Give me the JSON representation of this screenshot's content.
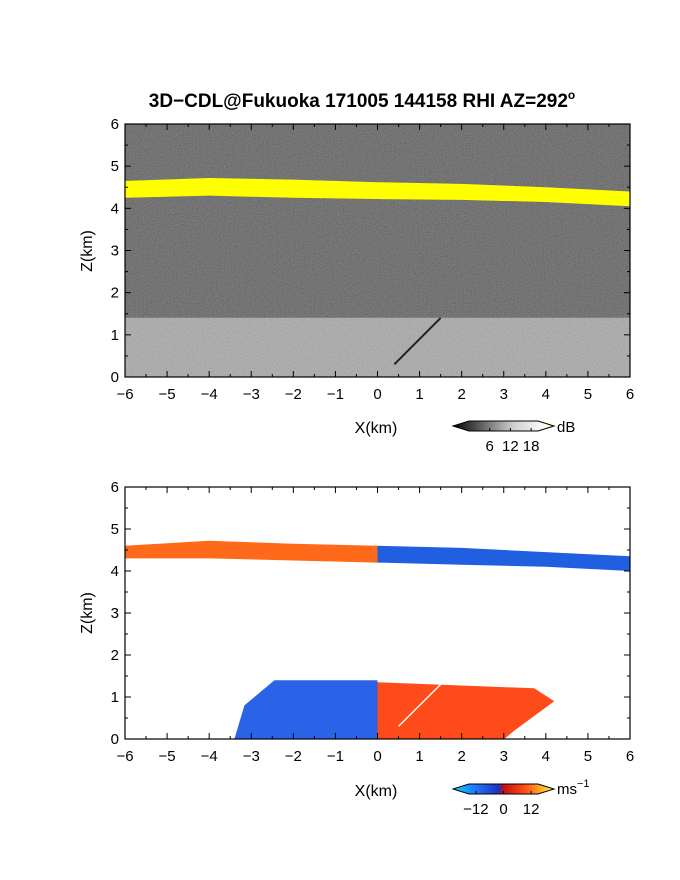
{
  "chart_data": [
    {
      "type": "heatmap",
      "title": "3D−CDL@Fukuoka 171005 144158 RHI AZ=292",
      "title_superscript": "o",
      "xlabel": "X(km)",
      "ylabel": "Z(km)",
      "xlim": [
        -6,
        6
      ],
      "ylim": [
        0,
        6
      ],
      "xticks": [
        "−6",
        "−5",
        "−4",
        "−3",
        "−2",
        "−1",
        "0",
        "1",
        "2",
        "3",
        "4",
        "5",
        "6"
      ],
      "yticks": [
        "0",
        "1",
        "2",
        "3",
        "4",
        "5",
        "6"
      ],
      "colorbar": {
        "unit": "dB",
        "ticks": [
          "6",
          "12",
          "18"
        ],
        "range": [
          0,
          20
        ]
      },
      "colors": {
        "background": "#1e1e1e",
        "cloud_layer": "#ffff00",
        "boundary_layer": "#9a9a9a"
      },
      "features": [
        {
          "kind": "cloud_layer",
          "z_top": [
            4.65,
            4.72,
            4.68,
            4.62,
            4.58,
            4.5,
            4.4
          ],
          "z_bottom": [
            4.25,
            4.3,
            4.25,
            4.22,
            4.2,
            4.15,
            4.05
          ],
          "x": [
            -6,
            -4,
            -2,
            0,
            2,
            4,
            6
          ]
        },
        {
          "kind": "boundary_layer",
          "x_range": [
            -6,
            6
          ],
          "z_top": 1.4
        }
      ]
    },
    {
      "type": "heatmap",
      "xlabel": "X(km)",
      "ylabel": "Z(km)",
      "xlim": [
        -6,
        6
      ],
      "ylim": [
        0,
        6
      ],
      "xticks": [
        "−6",
        "−5",
        "−4",
        "−3",
        "−2",
        "−1",
        "0",
        "1",
        "2",
        "3",
        "4",
        "5",
        "6"
      ],
      "yticks": [
        "0",
        "1",
        "2",
        "3",
        "4",
        "5",
        "6"
      ],
      "colorbar": {
        "unit": "ms",
        "unit_superscript": "−1",
        "ticks": [
          "−12",
          "0",
          "12"
        ],
        "range": [
          -15,
          15
        ]
      },
      "colors": {
        "toward": "#2a63e8",
        "away": "#ff4a1a",
        "cloud_west": "#ff6a1a",
        "cloud_east": "#1f5fe0"
      },
      "features": [
        {
          "kind": "cloud_layer",
          "x": [
            -6,
            -4,
            -2,
            0,
            2,
            4,
            6
          ],
          "z_top": [
            4.6,
            4.72,
            4.65,
            4.6,
            4.55,
            4.45,
            4.35
          ],
          "z_bottom": [
            4.3,
            4.3,
            4.25,
            4.2,
            4.15,
            4.1,
            4.0
          ]
        },
        {
          "kind": "boundary_layer_negative",
          "x_range": [
            -3.4,
            0
          ],
          "z_top": 1.4
        },
        {
          "kind": "boundary_layer_positive",
          "x_range": [
            0,
            4.2
          ],
          "z_top": 1.35
        }
      ]
    }
  ]
}
